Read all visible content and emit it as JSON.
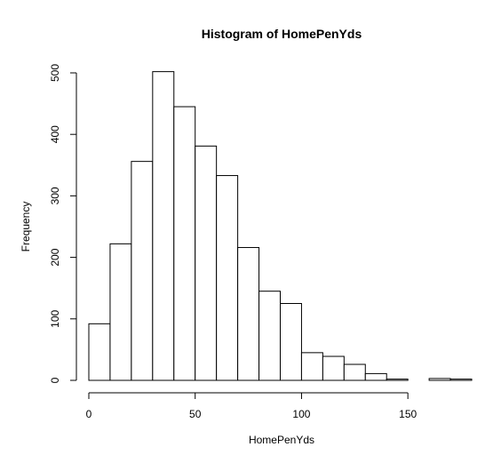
{
  "chart_data": {
    "type": "bar",
    "title": "Histogram of HomePenYds",
    "xlabel": "HomePenYds",
    "ylabel": "Frequency",
    "bin_edges": [
      0,
      10,
      20,
      30,
      40,
      50,
      60,
      70,
      80,
      90,
      100,
      110,
      120,
      130,
      140,
      150,
      160,
      170,
      180
    ],
    "values": [
      92,
      222,
      356,
      502,
      445,
      381,
      333,
      216,
      145,
      125,
      45,
      39,
      26,
      11,
      2,
      0,
      3,
      2
    ],
    "xticks": [
      0,
      50,
      100,
      150
    ],
    "xtick_labels": [
      "0",
      "50",
      "100",
      "150"
    ],
    "yticks": [
      0,
      100,
      200,
      300,
      400,
      500
    ],
    "ytick_labels": [
      "0",
      "100",
      "200",
      "300",
      "400",
      "500"
    ],
    "xlim": [
      0,
      180
    ],
    "ylim": [
      0,
      500
    ],
    "grid": false,
    "bar_fill": "#ffffff",
    "bar_stroke": "#000000"
  }
}
